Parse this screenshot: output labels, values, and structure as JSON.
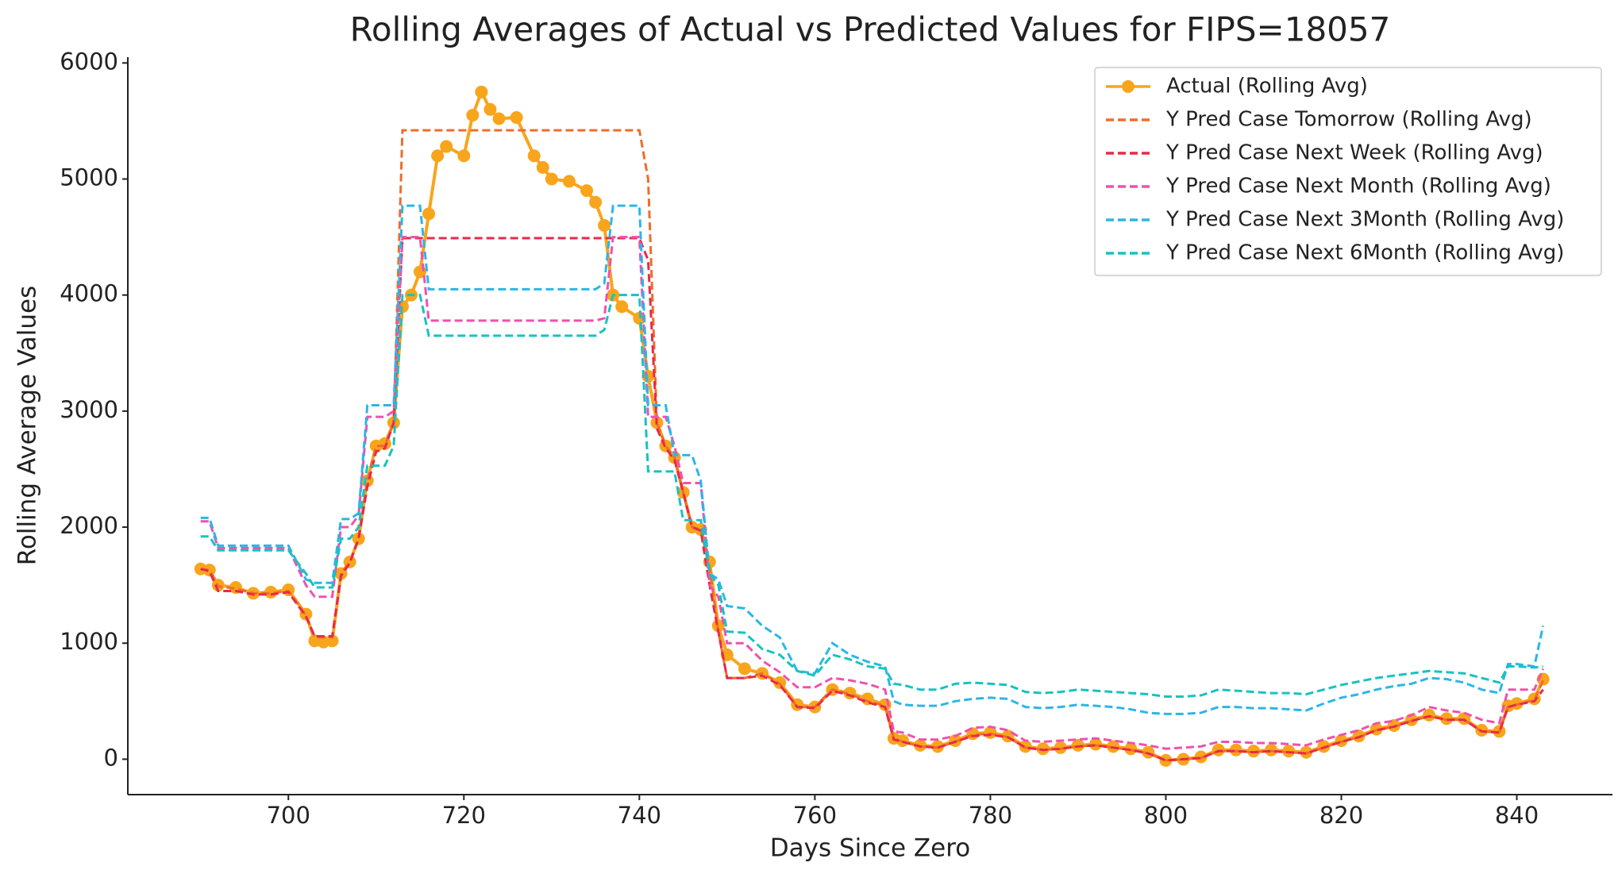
{
  "chart_data": {
    "type": "line",
    "title": "Rolling Averages of Actual vs Predicted Values for FIPS=18057",
    "x_label": "Days Since Zero",
    "y_label": "Rolling Average Values",
    "xlim": [
      681.7,
      850.9
    ],
    "xticks": [
      700,
      720,
      740,
      760,
      780,
      800,
      820,
      840
    ],
    "ylim": [
      -305,
      6050
    ],
    "yticks": [
      0,
      1000,
      2000,
      3000,
      4000,
      5000,
      6000
    ],
    "grid": false,
    "legend": "upper right",
    "x": [
      690,
      691,
      692,
      694,
      696,
      698,
      700,
      702,
      703,
      704,
      705,
      706,
      707,
      708,
      709,
      710,
      711,
      712,
      713,
      714,
      715,
      716,
      717,
      718,
      720,
      721,
      722,
      723,
      724,
      726,
      728,
      729,
      730,
      732,
      734,
      735,
      736,
      737,
      738,
      740,
      741,
      742,
      743,
      744,
      745,
      746,
      747,
      748,
      749,
      750,
      752,
      754,
      756,
      758,
      760,
      762,
      764,
      766,
      768,
      769,
      770,
      772,
      774,
      776,
      778,
      780,
      782,
      784,
      786,
      788,
      790,
      792,
      794,
      796,
      798,
      800,
      802,
      804,
      806,
      808,
      810,
      812,
      814,
      816,
      818,
      820,
      822,
      824,
      826,
      828,
      830,
      832,
      834,
      836,
      838,
      839,
      840,
      842,
      843
    ],
    "series": [
      {
        "name": "Actual (Rolling Avg)",
        "color": "#f8a51c",
        "marker": true,
        "dashed": false,
        "values": [
          1640,
          1630,
          1500,
          1480,
          1430,
          1440,
          1460,
          1250,
          1020,
          1010,
          1020,
          1600,
          1700,
          1900,
          2400,
          2700,
          2720,
          2900,
          3900,
          4000,
          4200,
          4700,
          5200,
          5280,
          5200,
          5550,
          5750,
          5600,
          5520,
          5530,
          5200,
          5100,
          5000,
          4980,
          4900,
          4800,
          4600,
          4000,
          3900,
          3800,
          3300,
          2900,
          2700,
          2600,
          2300,
          2000,
          1980,
          1700,
          1150,
          900,
          780,
          740,
          660,
          470,
          450,
          600,
          570,
          520,
          470,
          180,
          160,
          120,
          110,
          160,
          220,
          230,
          200,
          110,
          90,
          100,
          120,
          130,
          110,
          90,
          60,
          -10,
          0,
          20,
          80,
          80,
          70,
          80,
          70,
          60,
          110,
          160,
          200,
          260,
          290,
          340,
          380,
          350,
          350,
          250,
          240,
          460,
          480,
          520,
          690
        ]
      },
      {
        "name": "Y Pred Case Tomorrow (Rolling Avg)",
        "color": "#f26b2a",
        "marker": false,
        "dashed": true,
        "values": [
          1640,
          1630,
          1490,
          1470,
          1430,
          1430,
          1450,
          1240,
          1050,
          1050,
          1050,
          1600,
          1700,
          1900,
          2400,
          2700,
          2700,
          2900,
          5420,
          5420,
          5420,
          5420,
          5420,
          5420,
          5420,
          5420,
          5420,
          5420,
          5420,
          5420,
          5420,
          5420,
          5420,
          5420,
          5420,
          5420,
          5420,
          5420,
          5420,
          5420,
          5000,
          2900,
          2700,
          2600,
          2300,
          2000,
          1980,
          1650,
          1100,
          700,
          700,
          740,
          650,
          450,
          450,
          600,
          560,
          500,
          460,
          180,
          150,
          110,
          100,
          150,
          210,
          220,
          190,
          100,
          80,
          90,
          110,
          120,
          100,
          80,
          50,
          -10,
          0,
          10,
          70,
          70,
          60,
          70,
          60,
          50,
          100,
          150,
          190,
          250,
          280,
          330,
          370,
          340,
          340,
          240,
          230,
          450,
          470,
          510,
          680
        ]
      },
      {
        "name": "Y Pred Case Next Week (Rolling Avg)",
        "color": "#e8294b",
        "marker": false,
        "dashed": true,
        "values": [
          1640,
          1620,
          1450,
          1450,
          1420,
          1420,
          1440,
          1230,
          1060,
          1060,
          1060,
          1580,
          1690,
          1900,
          2350,
          2650,
          2680,
          2900,
          4490,
          4490,
          4490,
          4490,
          4490,
          4490,
          4490,
          4490,
          4490,
          4490,
          4490,
          4490,
          4490,
          4490,
          4490,
          4490,
          4490,
          4490,
          4490,
          4490,
          4490,
          4490,
          4300,
          2850,
          2680,
          2580,
          2300,
          2000,
          1970,
          1500,
          1100,
          700,
          700,
          720,
          640,
          450,
          440,
          590,
          550,
          490,
          450,
          170,
          150,
          110,
          100,
          150,
          200,
          210,
          190,
          100,
          80,
          90,
          110,
          120,
          100,
          80,
          50,
          -10,
          0,
          10,
          70,
          70,
          60,
          70,
          60,
          50,
          100,
          150,
          190,
          250,
          280,
          330,
          370,
          340,
          340,
          240,
          230,
          450,
          470,
          500,
          600
        ]
      },
      {
        "name": "Y Pred Case Next Month (Rolling Avg)",
        "color": "#f050b0",
        "marker": false,
        "dashed": true,
        "values": [
          2050,
          2050,
          1820,
          1820,
          1820,
          1820,
          1820,
          1500,
          1400,
          1400,
          1400,
          2000,
          2000,
          2100,
          2950,
          2950,
          2950,
          3000,
          4500,
          4500,
          4500,
          3780,
          3780,
          3780,
          3780,
          3780,
          3780,
          3780,
          3780,
          3780,
          3780,
          3780,
          3780,
          3780,
          3780,
          3780,
          3800,
          4500,
          4500,
          4500,
          2950,
          2950,
          2950,
          2700,
          2380,
          2380,
          2380,
          1500,
          1400,
          1000,
          1000,
          850,
          750,
          620,
          620,
          700,
          680,
          650,
          600,
          240,
          230,
          170,
          170,
          200,
          270,
          280,
          250,
          160,
          150,
          160,
          170,
          180,
          160,
          140,
          120,
          90,
          100,
          110,
          150,
          150,
          140,
          140,
          130,
          120,
          170,
          210,
          250,
          310,
          330,
          380,
          450,
          420,
          400,
          340,
          310,
          600,
          600,
          600,
          780
        ]
      },
      {
        "name": "Y Pred Case Next 3Month (Rolling Avg)",
        "color": "#2bb6e8",
        "marker": false,
        "dashed": true,
        "values": [
          2080,
          2080,
          1840,
          1840,
          1840,
          1840,
          1840,
          1550,
          1520,
          1520,
          1520,
          2070,
          2070,
          2120,
          3050,
          3050,
          3050,
          3050,
          4770,
          4770,
          4770,
          4050,
          4050,
          4050,
          4050,
          4050,
          4050,
          4050,
          4050,
          4050,
          4050,
          4050,
          4050,
          4050,
          4050,
          4050,
          4100,
          4770,
          4770,
          4770,
          3050,
          3050,
          3050,
          2620,
          2620,
          2620,
          2400,
          1600,
          1550,
          1320,
          1300,
          1150,
          1050,
          760,
          740,
          1000,
          900,
          840,
          800,
          500,
          470,
          460,
          460,
          500,
          520,
          530,
          520,
          450,
          440,
          450,
          470,
          460,
          450,
          430,
          400,
          390,
          390,
          400,
          450,
          450,
          440,
          440,
          430,
          420,
          480,
          530,
          560,
          600,
          630,
          650,
          700,
          690,
          660,
          600,
          570,
          820,
          820,
          800,
          1150
        ]
      },
      {
        "name": "Y Pred Case Next 6Month (Rolling Avg)",
        "color": "#17c3c0",
        "marker": false,
        "dashed": true,
        "values": [
          1920,
          1920,
          1800,
          1800,
          1800,
          1800,
          1800,
          1600,
          1480,
          1480,
          1480,
          1900,
          1900,
          2000,
          2530,
          2530,
          2530,
          2700,
          4000,
          4000,
          4000,
          3650,
          3650,
          3650,
          3650,
          3650,
          3650,
          3650,
          3650,
          3650,
          3650,
          3650,
          3650,
          3650,
          3650,
          3650,
          3700,
          4000,
          4000,
          4000,
          2480,
          2480,
          2480,
          2480,
          2060,
          2060,
          2060,
          1600,
          1500,
          1100,
          1090,
          950,
          900,
          760,
          720,
          900,
          860,
          800,
          780,
          650,
          640,
          600,
          600,
          650,
          660,
          650,
          640,
          580,
          570,
          580,
          600,
          590,
          580,
          570,
          560,
          540,
          540,
          550,
          600,
          590,
          580,
          570,
          570,
          560,
          600,
          640,
          670,
          700,
          720,
          740,
          760,
          750,
          740,
          700,
          660,
          800,
          800,
          790,
          800
        ]
      }
    ]
  }
}
